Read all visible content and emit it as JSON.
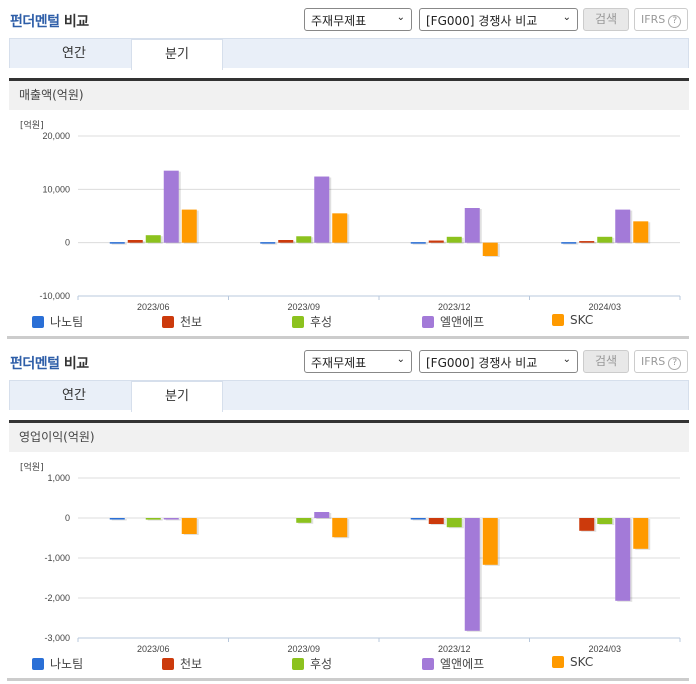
{
  "sections": [
    {
      "title_part1": "펀더멘털",
      "title_part2": "비교",
      "select1": "주재무제표",
      "select2": "[FG000] 경쟁사 비교",
      "search_label": "검색",
      "ifrs_label": "IFRS",
      "ifrs_help": "?",
      "tabs": [
        {
          "label": "연간",
          "active": false
        },
        {
          "label": "분기",
          "active": true
        }
      ],
      "metric_label": "매출액(억원)",
      "unit_label": "[억원]"
    },
    {
      "title_part1": "펀더멘털",
      "title_part2": "비교",
      "select1": "주재무제표",
      "select2": "[FG000] 경쟁사 비교",
      "search_label": "검색",
      "ifrs_label": "IFRS",
      "ifrs_help": "?",
      "tabs": [
        {
          "label": "연간",
          "active": false
        },
        {
          "label": "분기",
          "active": true
        }
      ],
      "metric_label": "영업이익(억원)",
      "unit_label": "[억원]"
    }
  ],
  "legend": [
    {
      "name": "나노팀",
      "color": "#2a6fd6"
    },
    {
      "name": "천보",
      "color": "#cc3a0c"
    },
    {
      "name": "후성",
      "color": "#8cc21e"
    },
    {
      "name": "엘앤에프",
      "color": "#a37ad8"
    },
    {
      "name": "SKC",
      "color": "#ff9a00"
    }
  ],
  "chart_data": [
    {
      "type": "bar",
      "title": "매출액(억원)",
      "ylabel": "[억원]",
      "categories": [
        "2023/06",
        "2023/09",
        "2023/12",
        "2024/03"
      ],
      "yticks": [
        20000,
        10000,
        0,
        -10000
      ],
      "ytick_labels": [
        "20,000",
        "10,000",
        "0",
        "-10,000"
      ],
      "ylim": [
        -10000,
        20000
      ],
      "grid": true,
      "legend_position": "bottom",
      "series": [
        {
          "name": "나노팀",
          "values": [
            100,
            100,
            100,
            100
          ]
        },
        {
          "name": "천보",
          "values": [
            500,
            500,
            400,
            300
          ]
        },
        {
          "name": "후성",
          "values": [
            1400,
            1200,
            1100,
            1100
          ]
        },
        {
          "name": "엘앤에프",
          "values": [
            13500,
            12400,
            6500,
            6200
          ]
        },
        {
          "name": "SKC",
          "values": [
            6200,
            5500,
            -2500,
            4000
          ]
        }
      ]
    },
    {
      "type": "bar",
      "title": "영업이익(억원)",
      "ylabel": "[억원]",
      "categories": [
        "2023/06",
        "2023/09",
        "2023/12",
        "2024/03"
      ],
      "yticks": [
        1000,
        0,
        -1000,
        -2000,
        -3000
      ],
      "ytick_labels": [
        "1,000",
        "0",
        "-1,000",
        "-2,000",
        "-3,000"
      ],
      "ylim": [
        -3000,
        1000
      ],
      "grid": true,
      "legend_position": "bottom",
      "series": [
        {
          "name": "나노팀",
          "values": [
            -20,
            0,
            -20,
            0
          ]
        },
        {
          "name": "천보",
          "values": [
            0,
            0,
            -150,
            -320
          ]
        },
        {
          "name": "후성",
          "values": [
            -40,
            -120,
            -230,
            -150
          ]
        },
        {
          "name": "엘앤에프",
          "values": [
            -20,
            150,
            -2820,
            -2070
          ]
        },
        {
          "name": "SKC",
          "values": [
            -400,
            -480,
            -1170,
            -770
          ]
        }
      ]
    }
  ]
}
